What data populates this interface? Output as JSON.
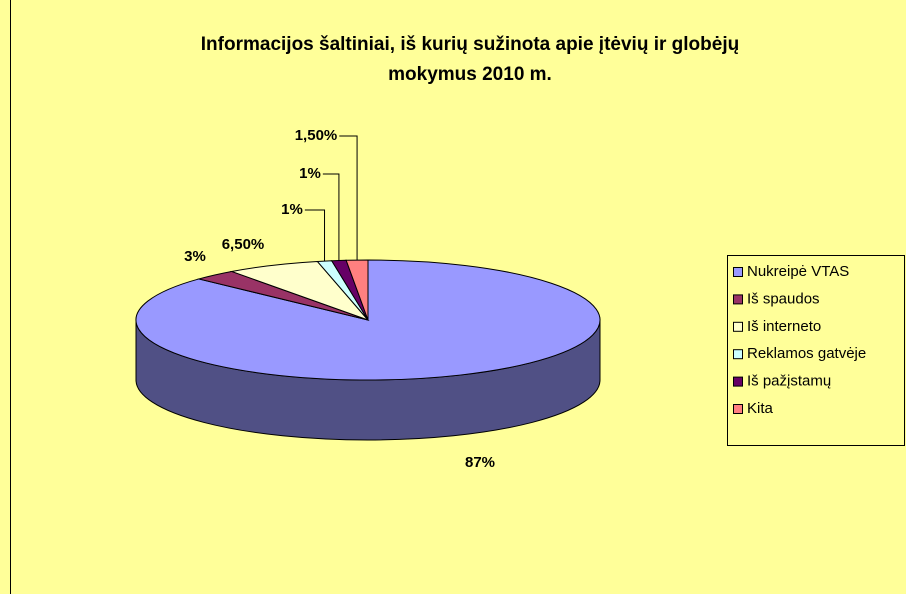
{
  "chart_data": {
    "type": "pie3d",
    "title": "Informacijos šaltiniai, iš kurių sužinota apie įtėvių ir globėjų",
    "subtitle": "mokymus 2010 m.",
    "categories": [
      "Nukreipė VTAS",
      "Iš spaudos",
      "Iš interneto",
      "Reklamos gatvėje",
      "Iš pažįstamų",
      "Kita"
    ],
    "values": [
      87,
      3,
      6.5,
      1,
      1,
      1.5
    ],
    "value_labels": [
      "87%",
      "3%",
      "6,50%",
      "1%",
      "1%",
      "1,50%"
    ],
    "colors": [
      "#9999ff",
      "#993366",
      "#ffffcc",
      "#ccffff",
      "#660066",
      "#ff8080"
    ],
    "legend": "right"
  }
}
